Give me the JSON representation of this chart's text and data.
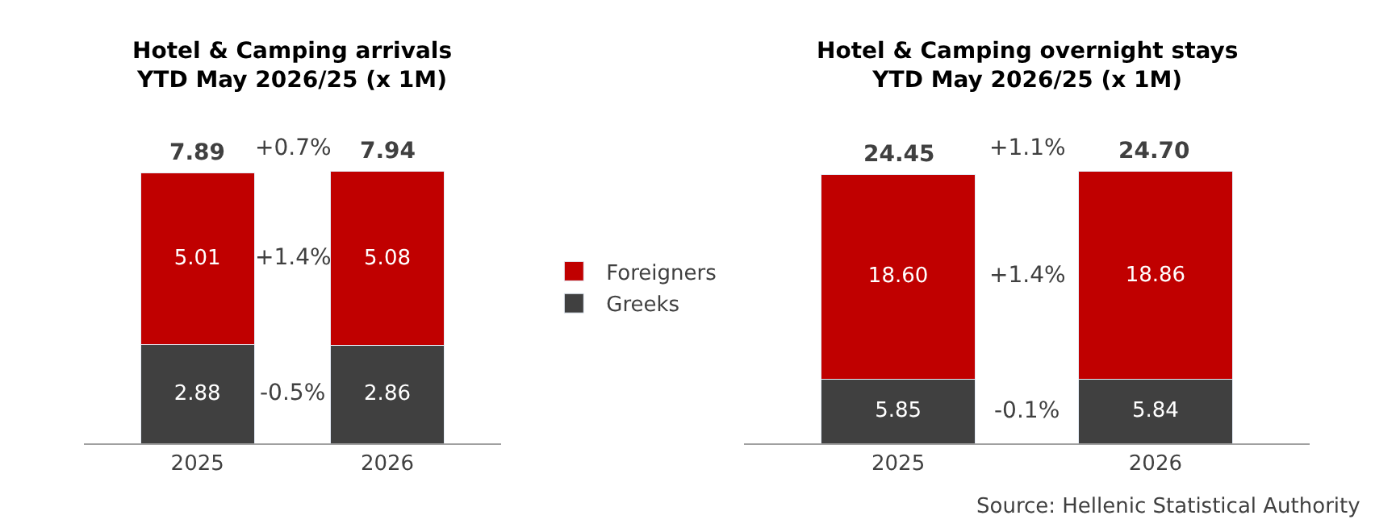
{
  "chart_data": [
    {
      "type": "bar",
      "stacked": true,
      "title": "Hotel & Camping arrivals\nYTD May 2026/25 (x 1M)",
      "categories": [
        "2025",
        "2026"
      ],
      "series": [
        {
          "name": "Greeks",
          "color": "#404040",
          "values": [
            2.88,
            2.86
          ],
          "value_labels": [
            "2.88",
            "2.86"
          ]
        },
        {
          "name": "Foreigners",
          "color": "#c00000",
          "values": [
            5.01,
            5.08
          ],
          "value_labels": [
            "5.01",
            "5.08"
          ]
        }
      ],
      "totals": [
        "7.89",
        "7.94"
      ],
      "legend": "right",
      "annotations": [
        "+0.7%",
        "+1.4%",
        "-0.5%"
      ]
    },
    {
      "type": "bar",
      "stacked": true,
      "title": "Hotel & Camping overnight stays\nYTD May 2026/25 (x 1M)",
      "categories": [
        "2025",
        "2026"
      ],
      "series": [
        {
          "color": "#404040",
          "values": [
            5.85,
            5.84
          ],
          "value_labels": [
            "5.85",
            "5.84"
          ]
        },
        {
          "color": "#c00000",
          "values": [
            18.6,
            18.86
          ],
          "value_labels": [
            "18.60",
            "18.86"
          ]
        }
      ],
      "totals": [
        "24.45",
        "24.70"
      ],
      "annotations": [
        "+1.1%",
        "+1.4%",
        "-0.1%",
        "Source: Hellenic Statistical Authority"
      ]
    }
  ]
}
